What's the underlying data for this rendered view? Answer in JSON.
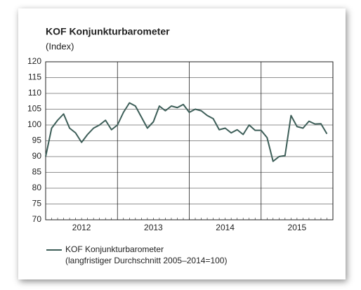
{
  "chart_data": {
    "type": "line",
    "title": "KOF Konjunkturbarometer",
    "subtitle": "(Index)",
    "x": [
      "2012-01",
      "2012-02",
      "2012-03",
      "2012-04",
      "2012-05",
      "2012-06",
      "2012-07",
      "2012-08",
      "2012-09",
      "2012-10",
      "2012-11",
      "2012-12",
      "2013-01",
      "2013-02",
      "2013-03",
      "2013-04",
      "2013-05",
      "2013-06",
      "2013-07",
      "2013-08",
      "2013-09",
      "2013-10",
      "2013-11",
      "2013-12",
      "2014-01",
      "2014-02",
      "2014-03",
      "2014-04",
      "2014-05",
      "2014-06",
      "2014-07",
      "2014-08",
      "2014-09",
      "2014-10",
      "2014-11",
      "2014-12",
      "2015-01",
      "2015-02",
      "2015-03",
      "2015-04",
      "2015-05",
      "2015-06",
      "2015-07",
      "2015-08",
      "2015-09",
      "2015-10",
      "2015-11",
      "2015-12"
    ],
    "year_labels": [
      "2012",
      "2013",
      "2014",
      "2015"
    ],
    "series": [
      {
        "name": "KOF Konjunkturbarometer",
        "color": "#3d5e58",
        "values": [
          90,
          99,
          101.5,
          103.5,
          99,
          97.5,
          94.5,
          97,
          99,
          100,
          101.5,
          98.5,
          100,
          104,
          107,
          106,
          102.5,
          99,
          101,
          106,
          104.5,
          106,
          105.5,
          106.5,
          104,
          105,
          104.5,
          103,
          102,
          98.5,
          99,
          97.5,
          98.5,
          97,
          100,
          98.3,
          98.3,
          96,
          88.5,
          90,
          90.3,
          103,
          99.5,
          99,
          101.2,
          100.3,
          100.4,
          97.2
        ]
      }
    ],
    "legend_note": "(langfristiger Durchschnitt 2005–2014=100)",
    "ylim": [
      70,
      120
    ],
    "yticks": [
      70,
      75,
      80,
      85,
      90,
      95,
      100,
      105,
      110,
      115,
      120
    ],
    "grid": true
  }
}
